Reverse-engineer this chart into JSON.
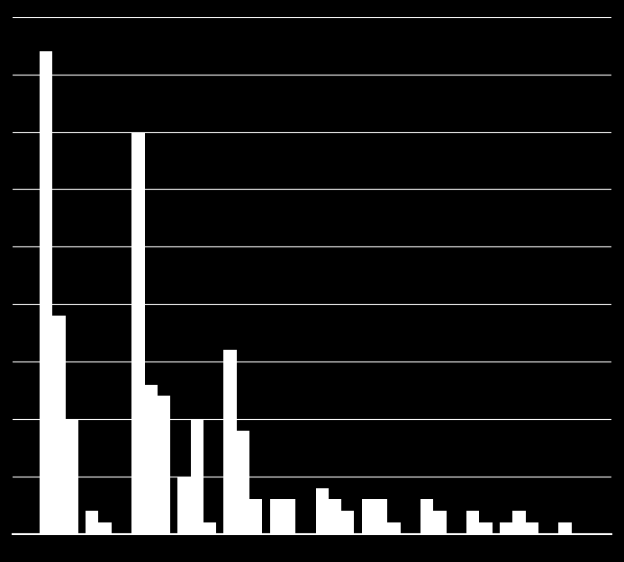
{
  "background_color": "#000000",
  "bar_color": "#ffffff",
  "grid_color": "#ffffff",
  "axis_color": "#ffffff",
  "text_color": "#ffffff",
  "series1": [
    42,
    2,
    35,
    5,
    16,
    3,
    4,
    3,
    0,
    0,
    1,
    0
  ],
  "series2": [
    19,
    1,
    13,
    10,
    9,
    3,
    3,
    3,
    3,
    2,
    2,
    1
  ],
  "series3": [
    10,
    0,
    12,
    1,
    3,
    0,
    2,
    1,
    2,
    1,
    1,
    0
  ],
  "n_groups": 12,
  "ylim": [
    0,
    45
  ],
  "yticks": [
    0,
    5,
    10,
    15,
    20,
    25,
    30,
    35,
    40,
    45
  ],
  "figsize": [
    6.93,
    6.25
  ],
  "dpi": 100,
  "bar_width": 0.28
}
